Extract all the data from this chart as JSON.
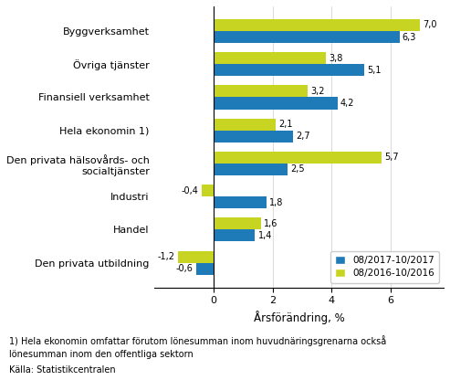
{
  "categories": [
    "Byggverksamhet",
    "Övriga tjänster",
    "Finansiell verksamhet",
    "Hela ekonomin 1)",
    "Den privata hälsovårds- och\nsocialtjänster",
    "Industri",
    "Handel",
    "Den privata utbildning"
  ],
  "series1_label": "08/2017-10/2017",
  "series2_label": "08/2016-10/2016",
  "series1_values": [
    6.3,
    5.1,
    4.2,
    2.7,
    2.5,
    1.8,
    1.4,
    -0.6
  ],
  "series2_values": [
    7.0,
    3.8,
    3.2,
    2.1,
    5.7,
    -0.4,
    1.6,
    -1.2
  ],
  "color1": "#1F7BB8",
  "color2": "#C8D422",
  "xlabel": "Årsförändring, %",
  "xlim": [
    -2.0,
    7.8
  ],
  "xticks": [
    0,
    2,
    4,
    6
  ],
  "footnote1": "1) Hela ekonomin omfattar förutom lönesumman inom huvudnäringsgrenarna också",
  "footnote2": "lönesumman inom den offentliga sektorn",
  "footnote3": "Källa: Statistikcentralen",
  "bar_height": 0.36,
  "value_fontsize": 7.0,
  "label_fontsize": 8.0,
  "legend_fontsize": 7.5,
  "xlabel_fontsize": 8.5,
  "footnote_fontsize": 7.0
}
